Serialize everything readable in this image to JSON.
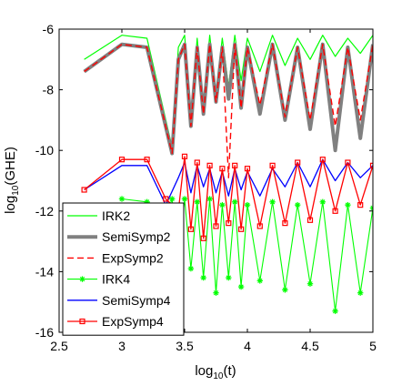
{
  "chart_data": {
    "type": "line",
    "title": "",
    "xlabel": "log10(t)",
    "ylabel": "log10(GHE)",
    "xlim": [
      2.5,
      5
    ],
    "ylim": [
      -16,
      -6
    ],
    "xticks": [
      "2.5",
      "3",
      "3.5",
      "4",
      "4.5",
      "5"
    ],
    "yticks": [
      "-6",
      "-8",
      "-10",
      "-12",
      "-14",
      "-16"
    ],
    "grid": false,
    "legend_position": "bottom-left",
    "series": [
      {
        "name": "IRK2",
        "color": "#00ff00",
        "style": "solid",
        "marker": "none",
        "x": [
          2.7,
          3.0,
          3.2,
          3.4,
          3.45,
          3.5,
          3.55,
          3.6,
          3.65,
          3.7,
          3.75,
          3.8,
          3.85,
          3.9,
          3.95,
          4.0,
          4.1,
          4.2,
          4.3,
          4.4,
          4.5,
          4.6,
          4.7,
          4.8,
          4.9,
          5.0
        ],
        "y": [
          -7.0,
          -6.2,
          -6.3,
          -9.9,
          -6.6,
          -6.2,
          -8.9,
          -6.3,
          -8.5,
          -6.2,
          -8.1,
          -6.3,
          -7.9,
          -6.2,
          -7.7,
          -6.3,
          -7.4,
          -6.2,
          -7.2,
          -6.3,
          -7.0,
          -6.2,
          -6.9,
          -6.3,
          -6.8,
          -6.2
        ]
      },
      {
        "name": "SemiSymp2",
        "color": "#808080",
        "style": "solid",
        "marker": "none",
        "x": [
          2.7,
          3.0,
          3.2,
          3.4,
          3.45,
          3.5,
          3.55,
          3.6,
          3.65,
          3.7,
          3.75,
          3.8,
          3.85,
          3.9,
          3.95,
          4.0,
          4.1,
          4.2,
          4.3,
          4.4,
          4.5,
          4.6,
          4.7,
          4.8,
          4.9,
          5.0
        ],
        "y": [
          -7.4,
          -6.5,
          -6.6,
          -10.1,
          -7.0,
          -6.5,
          -9.2,
          -6.6,
          -8.8,
          -6.5,
          -8.4,
          -6.6,
          -8.3,
          -6.5,
          -8.6,
          -6.6,
          -8.8,
          -6.5,
          -9.0,
          -6.6,
          -9.3,
          -6.5,
          -10.0,
          -6.6,
          -9.6,
          -6.5
        ]
      },
      {
        "name": "ExpSymp2",
        "color": "#ff0000",
        "style": "dashed",
        "marker": "none",
        "x": [
          2.7,
          3.0,
          3.2,
          3.4,
          3.45,
          3.5,
          3.55,
          3.6,
          3.65,
          3.7,
          3.75,
          3.8,
          3.85,
          3.9,
          3.95,
          4.0,
          4.1,
          4.2,
          4.3,
          4.4,
          4.5,
          4.6,
          4.7,
          4.8,
          4.9,
          5.0
        ],
        "y": [
          -7.4,
          -6.5,
          -6.6,
          -10.1,
          -7.0,
          -6.5,
          -9.2,
          -6.6,
          -8.8,
          -6.5,
          -8.4,
          -6.6,
          -10.9,
          -6.5,
          -8.6,
          -6.6,
          -8.5,
          -6.5,
          -8.9,
          -6.6,
          -9.0,
          -6.5,
          -9.2,
          -6.6,
          -9.0,
          -6.5
        ]
      },
      {
        "name": "IRK4",
        "color": "#00ff00",
        "style": "solid",
        "marker": "asterisk",
        "x": [
          3.0,
          3.2,
          3.35,
          3.4,
          3.45,
          3.5,
          3.55,
          3.6,
          3.65,
          3.7,
          3.75,
          3.8,
          3.85,
          3.9,
          3.95,
          4.0,
          4.1,
          4.2,
          4.3,
          4.4,
          4.5,
          4.6,
          4.7,
          4.8,
          4.9,
          5.0
        ],
        "y": [
          -11.6,
          -11.7,
          -12.2,
          -11.6,
          -13.5,
          -11.6,
          -13.9,
          -11.7,
          -14.2,
          -11.6,
          -14.7,
          -11.8,
          -14.2,
          -11.7,
          -14.5,
          -11.8,
          -14.3,
          -11.7,
          -14.6,
          -11.8,
          -14.4,
          -11.7,
          -15.3,
          -11.8,
          -14.7,
          -11.9
        ]
      },
      {
        "name": "SemiSymp4",
        "color": "#0000ff",
        "style": "solid",
        "marker": "none",
        "x": [
          2.7,
          3.0,
          3.2,
          3.35,
          3.45,
          3.5,
          3.55,
          3.6,
          3.65,
          3.7,
          3.75,
          3.8,
          3.85,
          3.9,
          3.95,
          4.0,
          4.1,
          4.2,
          4.3,
          4.4,
          4.5,
          4.6,
          4.7,
          4.8,
          4.9,
          5.0
        ],
        "y": [
          -11.3,
          -10.5,
          -10.5,
          -11.8,
          -10.9,
          -10.4,
          -11.4,
          -10.5,
          -11.2,
          -10.6,
          -11.4,
          -10.7,
          -11.5,
          -10.6,
          -11.3,
          -10.7,
          -11.5,
          -10.6,
          -11.2,
          -10.4,
          -11.2,
          -10.3,
          -11.0,
          -10.4,
          -10.9,
          -10.5
        ]
      },
      {
        "name": "ExpSymp4",
        "color": "#ff0000",
        "style": "solid",
        "marker": "square",
        "x": [
          2.7,
          3.0,
          3.2,
          3.35,
          3.45,
          3.5,
          3.55,
          3.6,
          3.65,
          3.7,
          3.75,
          3.8,
          3.85,
          3.9,
          3.95,
          4.0,
          4.1,
          4.2,
          4.3,
          4.4,
          4.5,
          4.6,
          4.7,
          4.8,
          4.9,
          5.0
        ],
        "y": [
          -11.3,
          -10.3,
          -10.3,
          -11.6,
          -12.0,
          -10.2,
          -12.6,
          -10.4,
          -12.9,
          -10.5,
          -12.5,
          -10.6,
          -12.4,
          -10.5,
          -12.6,
          -10.6,
          -12.5,
          -10.5,
          -12.4,
          -10.4,
          -12.3,
          -10.3,
          -12.0,
          -10.4,
          -11.8,
          -10.5
        ]
      }
    ]
  }
}
